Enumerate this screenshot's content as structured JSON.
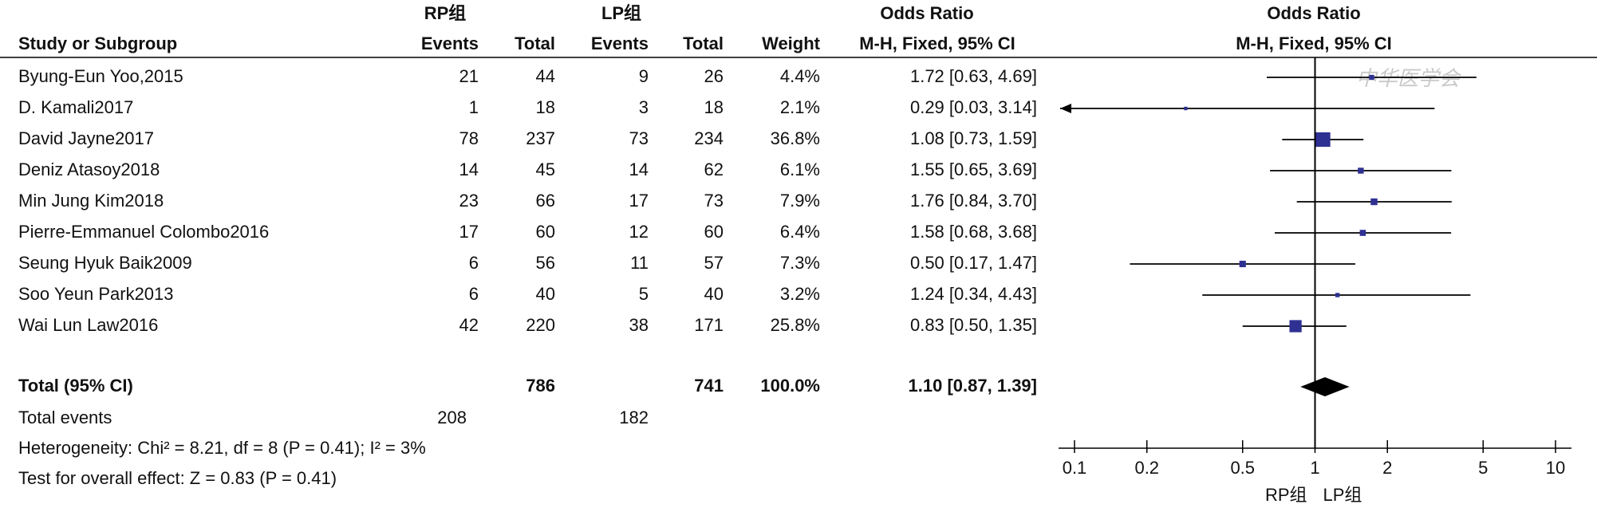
{
  "chart_data": {
    "type": "forest",
    "group_headers": [
      "RP组",
      "LP组"
    ],
    "headers": {
      "study": "Study or Subgroup",
      "events": "Events",
      "total": "Total",
      "weight": "Weight",
      "or_title": "Odds Ratio",
      "or_method": "M-H, Fixed, 95% CI"
    },
    "studies": [
      {
        "name": "Byung-Eun Yoo,2015",
        "rp_events": 21,
        "rp_total": 44,
        "lp_events": 9,
        "lp_total": 26,
        "weight": 4.4,
        "weight_label": "4.4%",
        "or": 1.72,
        "ci_low": 0.63,
        "ci_high": 4.69,
        "or_label": "1.72 [0.63, 4.69]"
      },
      {
        "name": "D. Kamali2017",
        "rp_events": 1,
        "rp_total": 18,
        "lp_events": 3,
        "lp_total": 18,
        "weight": 2.1,
        "weight_label": "2.1%",
        "or": 0.29,
        "ci_low": 0.03,
        "ci_high": 3.14,
        "or_label": "0.29 [0.03, 3.14]"
      },
      {
        "name": "David Jayne2017",
        "rp_events": 78,
        "rp_total": 237,
        "lp_events": 73,
        "lp_total": 234,
        "weight": 36.8,
        "weight_label": "36.8%",
        "or": 1.08,
        "ci_low": 0.73,
        "ci_high": 1.59,
        "or_label": "1.08 [0.73, 1.59]"
      },
      {
        "name": "Deniz Atasoy2018",
        "rp_events": 14,
        "rp_total": 45,
        "lp_events": 14,
        "lp_total": 62,
        "weight": 6.1,
        "weight_label": "6.1%",
        "or": 1.55,
        "ci_low": 0.65,
        "ci_high": 3.69,
        "or_label": "1.55 [0.65, 3.69]"
      },
      {
        "name": "Min Jung Kim2018",
        "rp_events": 23,
        "rp_total": 66,
        "lp_events": 17,
        "lp_total": 73,
        "weight": 7.9,
        "weight_label": "7.9%",
        "or": 1.76,
        "ci_low": 0.84,
        "ci_high": 3.7,
        "or_label": "1.76 [0.84, 3.70]"
      },
      {
        "name": "Pierre-Emmanuel Colombo2016",
        "rp_events": 17,
        "rp_total": 60,
        "lp_events": 12,
        "lp_total": 60,
        "weight": 6.4,
        "weight_label": "6.4%",
        "or": 1.58,
        "ci_low": 0.68,
        "ci_high": 3.68,
        "or_label": "1.58 [0.68, 3.68]"
      },
      {
        "name": "Seung Hyuk Baik2009",
        "rp_events": 6,
        "rp_total": 56,
        "lp_events": 11,
        "lp_total": 57,
        "weight": 7.3,
        "weight_label": "7.3%",
        "or": 0.5,
        "ci_low": 0.17,
        "ci_high": 1.47,
        "or_label": "0.50 [0.17, 1.47]"
      },
      {
        "name": "Soo Yeun Park2013",
        "rp_events": 6,
        "rp_total": 40,
        "lp_events": 5,
        "lp_total": 40,
        "weight": 3.2,
        "weight_label": "3.2%",
        "or": 1.24,
        "ci_low": 0.34,
        "ci_high": 4.43,
        "or_label": "1.24 [0.34, 4.43]"
      },
      {
        "name": "Wai Lun Law2016",
        "rp_events": 42,
        "rp_total": 220,
        "lp_events": 38,
        "lp_total": 171,
        "weight": 25.8,
        "weight_label": "25.8%",
        "or": 0.83,
        "ci_low": 0.5,
        "ci_high": 1.35,
        "or_label": "0.83 [0.50, 1.35]"
      }
    ],
    "total": {
      "name": "Total (95% CI)",
      "rp_total": 786,
      "lp_total": 741,
      "weight": 100,
      "weight_label": "100.0%",
      "or": 1.1,
      "ci_low": 0.87,
      "ci_high": 1.39,
      "or_label": "1.10 [0.87, 1.39]"
    },
    "total_events": {
      "name": "Total events",
      "rp": 208,
      "lp": 182
    },
    "heterogeneity": "Heterogeneity: Chi² = 8.21, df = 8 (P = 0.41); I² = 3%",
    "overall_effect": "Test for overall effect: Z = 0.83 (P = 0.41)",
    "xscale": "log",
    "xlim": [
      0.1,
      10
    ],
    "xticks": [
      0.1,
      0.2,
      0.5,
      1,
      2,
      5,
      10
    ],
    "favours": [
      "RP组",
      "LP组"
    ],
    "square_color": "#2e3192",
    "diamond_color": "#000000",
    "watermark": "中华医学会"
  }
}
